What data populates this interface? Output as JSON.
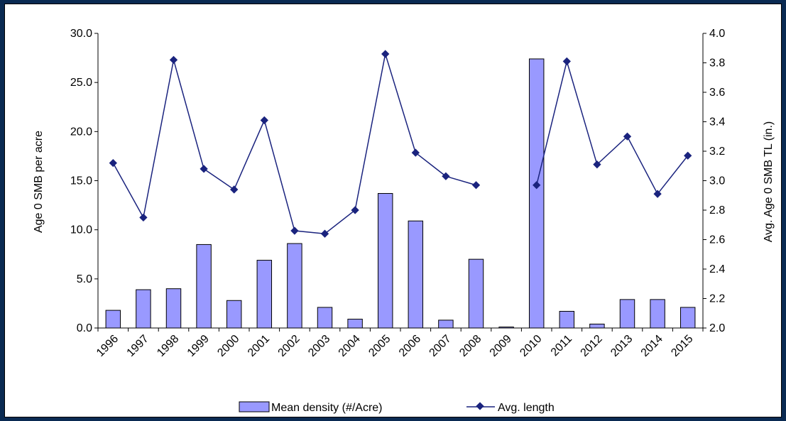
{
  "chart_data": {
    "type": "bar",
    "categories": [
      "1996",
      "1997",
      "1998",
      "1999",
      "2000",
      "2001",
      "2002",
      "2003",
      "2004",
      "2005",
      "2006",
      "2007",
      "2008",
      "2009",
      "2010",
      "2011",
      "2012",
      "2013",
      "2014",
      "2015"
    ],
    "series": [
      {
        "name": "Mean density (#/Acre)",
        "type": "bar",
        "axis": "left",
        "color": "#9999ff",
        "values": [
          1.8,
          3.9,
          4.0,
          8.5,
          2.8,
          6.9,
          8.6,
          2.1,
          0.9,
          13.7,
          10.9,
          0.8,
          7.0,
          0.1,
          27.4,
          1.7,
          0.4,
          2.9,
          2.9,
          2.1
        ]
      },
      {
        "name": "Avg. length",
        "type": "line",
        "axis": "right",
        "color": "#1a237e",
        "values": [
          3.12,
          2.75,
          3.82,
          3.08,
          2.94,
          3.41,
          2.66,
          2.64,
          2.8,
          3.86,
          3.19,
          3.03,
          2.97,
          null,
          2.97,
          3.81,
          3.11,
          3.3,
          2.91,
          3.17
        ]
      }
    ],
    "ylabel": "Age 0 SMB per acre",
    "y2label": "Avg. Age 0 SMB TL (in.)",
    "ylim": [
      0,
      30
    ],
    "y2lim": [
      2.0,
      4.0
    ],
    "yticks": [
      "0.0",
      "5.0",
      "10.0",
      "15.0",
      "20.0",
      "25.0",
      "30.0"
    ],
    "y2ticks": [
      "2.0",
      "2.2",
      "2.4",
      "2.6",
      "2.8",
      "3.0",
      "3.2",
      "3.4",
      "3.6",
      "3.8",
      "4.0"
    ],
    "legend_position": "bottom",
    "grid": false
  }
}
